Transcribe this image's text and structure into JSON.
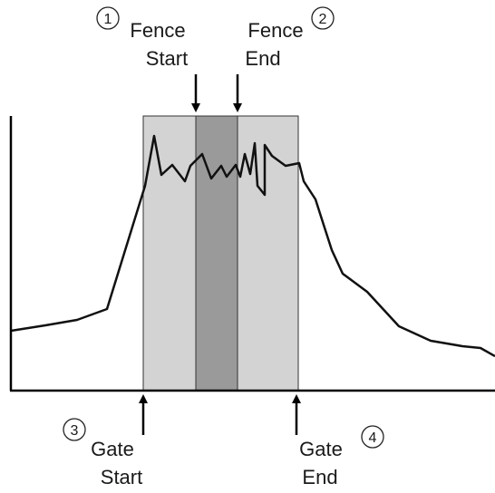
{
  "markers": [
    {
      "number": "1",
      "line1": "Fence",
      "line2": "Start"
    },
    {
      "number": "2",
      "line1": "Fence",
      "line2": "End"
    },
    {
      "number": "3",
      "line1": "Gate",
      "line2": "Start"
    },
    {
      "number": "4",
      "line1": "Gate",
      "line2": "End"
    }
  ],
  "colors": {
    "gate_region": "#d3d3d3",
    "fence_region": "#9a9a9a",
    "line": "#111111",
    "axis": "#000000",
    "region_border": "#333333"
  }
}
